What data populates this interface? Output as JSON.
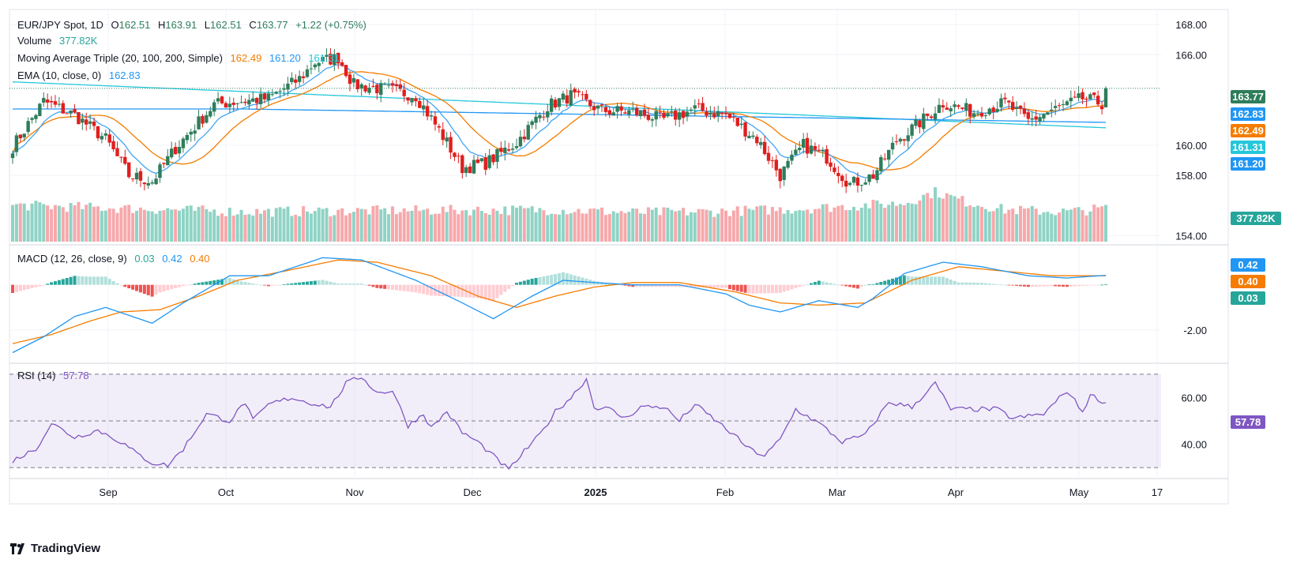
{
  "header": {
    "symbol": "EUR/JPY Spot, 1D",
    "o_label": "O",
    "o": "162.51",
    "h_label": "H",
    "h": "163.91",
    "l_label": "L",
    "l": "162.51",
    "c_label": "C",
    "c": "163.77",
    "change": "+1.22 (+0.75%)"
  },
  "legend": {
    "volume_label": "Volume",
    "volume_value": "377.82K",
    "ma_label": "Moving Average Triple (20, 100, 200, Simple)",
    "ma20": "162.49",
    "ma100": "161.20",
    "ma200": "161.31",
    "ema_label": "EMA (10, close, 0)",
    "ema_value": "162.83",
    "macd_label": "MACD (12, 26, close, 9)",
    "macd_hist": "0.03",
    "macd_line": "0.42",
    "macd_signal": "0.40",
    "rsi_label": "RSI (14)",
    "rsi_value": "57.78"
  },
  "price_axis": [
    "168.00",
    "166.00",
    "160.00",
    "158.00",
    "154.00"
  ],
  "badges": {
    "last": "163.77",
    "ema": "162.83",
    "ma20": "162.49",
    "ma200": "161.31",
    "ma100": "161.20",
    "volume": "377.82K",
    "macd_line": "0.42",
    "macd_signal": "0.40",
    "macd_hist": "0.03",
    "rsi": "57.78"
  },
  "macd_axis": [
    "-2.00"
  ],
  "rsi_axis": [
    "60.00",
    "40.00"
  ],
  "x_axis": [
    "Sep",
    "Oct",
    "Nov",
    "Dec",
    "2025",
    "Feb",
    "Mar",
    "Apr",
    "May",
    "17"
  ],
  "brand": "TradingView",
  "colors": {
    "up": "#26a69a",
    "down": "#ef5350",
    "up_candle": "#2e7d5b",
    "down_candle": "#e01e1e",
    "vol_up": "#8fd3c5",
    "vol_down": "#f7a8ab",
    "ma20": "#f57c00",
    "ma100": "#2196f3",
    "ma200": "#26c6da",
    "ema": "#42a5f5",
    "macd": "#2196f3",
    "signal": "#f57c00",
    "rsi": "#7e57c2"
  },
  "chart_data": {
    "type": "candlestick",
    "title": "EUR/JPY Spot, 1D",
    "price_ylim": [
      153.5,
      169.0
    ],
    "macd_ylim": [
      -3.4,
      1.7
    ],
    "rsi_ylim": [
      26,
      74
    ],
    "rsi_bands": [
      70,
      50,
      30
    ],
    "last": {
      "open": 162.51,
      "high": 163.91,
      "low": 162.51,
      "close": 163.77
    },
    "close_anchors": [
      [
        0,
        159.9
      ],
      [
        8,
        162.9
      ],
      [
        16,
        162.0
      ],
      [
        24,
        160.4
      ],
      [
        30,
        158.0
      ],
      [
        36,
        157.6
      ],
      [
        42,
        159.8
      ],
      [
        52,
        162.7
      ],
      [
        58,
        162.9
      ],
      [
        66,
        163.1
      ],
      [
        74,
        164.4
      ],
      [
        78,
        165.5
      ],
      [
        84,
        165.8
      ],
      [
        88,
        164.0
      ],
      [
        96,
        163.7
      ],
      [
        104,
        163.3
      ],
      [
        110,
        161.0
      ],
      [
        116,
        158.5
      ],
      [
        122,
        158.8
      ],
      [
        130,
        160.2
      ],
      [
        138,
        162.6
      ],
      [
        144,
        163.3
      ],
      [
        152,
        162.3
      ],
      [
        160,
        162.2
      ],
      [
        168,
        161.7
      ],
      [
        176,
        162.4
      ],
      [
        184,
        162.0
      ],
      [
        192,
        160.4
      ],
      [
        198,
        158.0
      ],
      [
        204,
        160.0
      ],
      [
        210,
        159.2
      ],
      [
        216,
        157.4
      ],
      [
        222,
        158.0
      ],
      [
        228,
        160.3
      ],
      [
        234,
        161.5
      ],
      [
        240,
        162.8
      ],
      [
        248,
        162.2
      ],
      [
        256,
        162.8
      ],
      [
        262,
        161.6
      ],
      [
        268,
        162.3
      ],
      [
        276,
        163.1
      ],
      [
        282,
        162.7
      ]
    ],
    "volume_anchors": [
      [
        0,
        0.55
      ],
      [
        30,
        0.5
      ],
      [
        60,
        0.45
      ],
      [
        100,
        0.47
      ],
      [
        140,
        0.48
      ],
      [
        160,
        0.44
      ],
      [
        180,
        0.45
      ],
      [
        205,
        0.5
      ],
      [
        220,
        0.55
      ],
      [
        230,
        0.58
      ],
      [
        238,
        0.75
      ],
      [
        246,
        0.6
      ],
      [
        256,
        0.48
      ],
      [
        272,
        0.45
      ],
      [
        282,
        0.5
      ]
    ],
    "macd_line_anchors": [
      [
        0,
        -3.0
      ],
      [
        8,
        -2.3
      ],
      [
        16,
        -1.4
      ],
      [
        24,
        -1.0
      ],
      [
        36,
        -1.7
      ],
      [
        44,
        -0.8
      ],
      [
        56,
        0.4
      ],
      [
        66,
        0.4
      ],
      [
        80,
        1.2
      ],
      [
        90,
        1.1
      ],
      [
        104,
        0.2
      ],
      [
        116,
        -0.8
      ],
      [
        124,
        -1.5
      ],
      [
        134,
        -0.5
      ],
      [
        142,
        0.2
      ],
      [
        150,
        0.1
      ],
      [
        160,
        0.0
      ],
      [
        172,
        0.0
      ],
      [
        184,
        -0.4
      ],
      [
        190,
        -0.9
      ],
      [
        198,
        -1.2
      ],
      [
        208,
        -0.7
      ],
      [
        218,
        -1.0
      ],
      [
        222,
        -0.6
      ],
      [
        230,
        0.5
      ],
      [
        240,
        1.0
      ],
      [
        250,
        0.8
      ],
      [
        262,
        0.4
      ],
      [
        272,
        0.3
      ],
      [
        282,
        0.42
      ]
    ],
    "signal_line_anchors": [
      [
        0,
        -2.6
      ],
      [
        10,
        -2.2
      ],
      [
        20,
        -1.6
      ],
      [
        28,
        -1.2
      ],
      [
        38,
        -1.1
      ],
      [
        48,
        -0.5
      ],
      [
        58,
        0.2
      ],
      [
        70,
        0.6
      ],
      [
        84,
        1.1
      ],
      [
        94,
        1.0
      ],
      [
        108,
        0.4
      ],
      [
        120,
        -0.5
      ],
      [
        130,
        -1.0
      ],
      [
        140,
        -0.5
      ],
      [
        150,
        -0.1
      ],
      [
        160,
        0.1
      ],
      [
        172,
        0.1
      ],
      [
        186,
        -0.3
      ],
      [
        198,
        -0.8
      ],
      [
        208,
        -0.9
      ],
      [
        220,
        -0.8
      ],
      [
        232,
        0.2
      ],
      [
        244,
        0.8
      ],
      [
        256,
        0.6
      ],
      [
        268,
        0.4
      ],
      [
        282,
        0.4
      ]
    ],
    "rsi_anchors": [
      [
        0,
        33
      ],
      [
        6,
        38
      ],
      [
        10,
        49
      ],
      [
        16,
        43
      ],
      [
        22,
        46
      ],
      [
        28,
        41
      ],
      [
        32,
        36
      ],
      [
        36,
        32
      ],
      [
        40,
        31
      ],
      [
        44,
        38
      ],
      [
        50,
        53
      ],
      [
        56,
        50
      ],
      [
        60,
        58
      ],
      [
        62,
        50
      ],
      [
        66,
        57
      ],
      [
        72,
        60
      ],
      [
        76,
        58
      ],
      [
        82,
        56
      ],
      [
        86,
        66
      ],
      [
        90,
        69
      ],
      [
        94,
        62
      ],
      [
        98,
        63
      ],
      [
        102,
        48
      ],
      [
        106,
        53
      ],
      [
        108,
        47
      ],
      [
        112,
        54
      ],
      [
        116,
        45
      ],
      [
        120,
        41
      ],
      [
        124,
        35
      ],
      [
        128,
        29
      ],
      [
        132,
        37
      ],
      [
        136,
        44
      ],
      [
        140,
        54
      ],
      [
        144,
        60
      ],
      [
        148,
        68
      ],
      [
        150,
        56
      ],
      [
        154,
        55
      ],
      [
        158,
        51
      ],
      [
        162,
        56
      ],
      [
        168,
        56
      ],
      [
        172,
        50
      ],
      [
        176,
        57
      ],
      [
        180,
        52
      ],
      [
        186,
        44
      ],
      [
        190,
        38
      ],
      [
        194,
        35
      ],
      [
        198,
        42
      ],
      [
        202,
        55
      ],
      [
        208,
        49
      ],
      [
        214,
        41
      ],
      [
        220,
        44
      ],
      [
        226,
        58
      ],
      [
        232,
        56
      ],
      [
        238,
        66
      ],
      [
        242,
        55
      ],
      [
        248,
        55
      ],
      [
        254,
        55
      ],
      [
        258,
        51
      ],
      [
        262,
        52
      ],
      [
        266,
        53
      ],
      [
        272,
        63
      ],
      [
        276,
        54
      ],
      [
        278,
        61
      ],
      [
        282,
        57.78
      ]
    ]
  }
}
